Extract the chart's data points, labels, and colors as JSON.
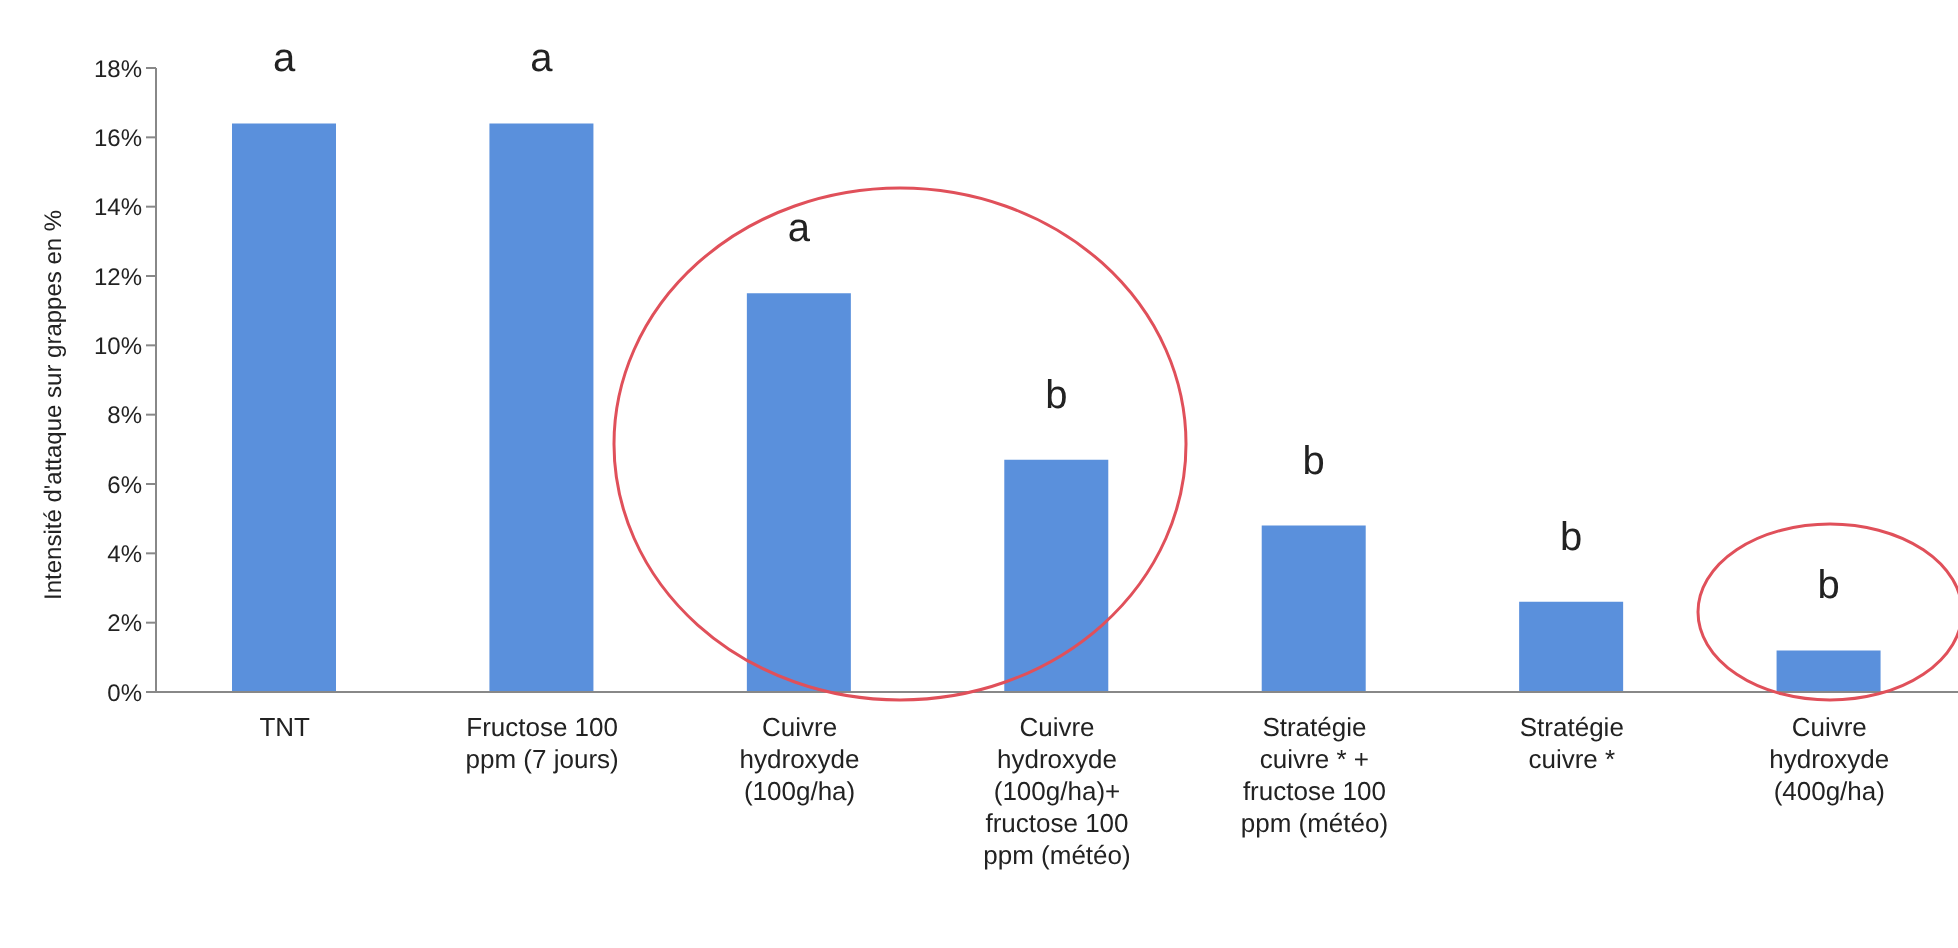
{
  "chart_data": {
    "type": "bar",
    "ylabel": "Intensité d'attaque sur grappes en %",
    "categories": [
      "TNT",
      "Fructose 100 ppm (7 jours)",
      "Cuivre hydroxyde (100g/ha)",
      "Cuivre hydroxyde (100g/ha)+ fructose 100 ppm (météo)",
      "Stratégie cuivre * + fructose 100 ppm (météo)",
      "Stratégie cuivre *",
      "Cuivre hydroxyde (400g/ha)"
    ],
    "values": [
      16.4,
      16.4,
      11.5,
      6.7,
      4.8,
      2.6,
      1.2
    ],
    "color": "#5a90dc",
    "ylim": [
      0,
      18
    ],
    "yticks": [
      {
        "value": 0,
        "label": "0%"
      },
      {
        "value": 2,
        "label": "2%"
      },
      {
        "value": 4,
        "label": "4%"
      },
      {
        "value": 6,
        "label": "6%"
      },
      {
        "value": 8,
        "label": "8%"
      },
      {
        "value": 10,
        "label": "10%"
      },
      {
        "value": 12,
        "label": "12%"
      },
      {
        "value": 14,
        "label": "14%"
      },
      {
        "value": 16,
        "label": "16%"
      },
      {
        "value": 18,
        "label": "18%"
      }
    ],
    "grid": false,
    "legend": false,
    "annotations": [
      "a",
      "a",
      "a",
      "b",
      "b",
      "b",
      "b"
    ]
  }
}
